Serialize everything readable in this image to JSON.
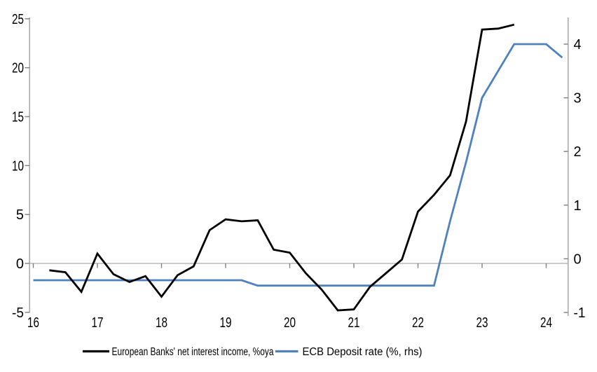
{
  "chart_data": {
    "type": "line",
    "title": "",
    "x_axis": {
      "ticks": [
        16,
        17,
        18,
        19,
        20,
        21,
        22,
        23,
        24
      ],
      "range": [
        16,
        24.35
      ],
      "tick_position": "on zero gridline"
    },
    "left_axis": {
      "ticks": [
        -5,
        0,
        5,
        10,
        15,
        20,
        25
      ],
      "range": [
        -5,
        25
      ]
    },
    "right_axis": {
      "ticks": [
        -1,
        0,
        1,
        2,
        3,
        4
      ],
      "range": [
        -1,
        4.47
      ]
    },
    "grid": "single horizontal line at left-axis zero",
    "legend_position": "bottom-center",
    "colors": {
      "axis_line": "#a6a6a6",
      "gridline": "#ababab",
      "tick_mark": "#7f7f7f",
      "series1": "#000000",
      "series2": "#4f81bd"
    },
    "series": [
      {
        "name": "European Banks' net interest income, %oya",
        "axis": "left",
        "color": "#000000",
        "x": [
          16.25,
          16.5,
          16.75,
          17,
          17.25,
          17.5,
          17.75,
          18,
          18.25,
          18.5,
          18.75,
          19,
          19.25,
          19.5,
          19.75,
          20,
          20.25,
          20.5,
          20.75,
          21,
          21.25,
          21.5,
          21.75,
          22,
          22.25,
          22.5,
          22.75,
          23,
          23.25,
          23.5
        ],
        "values": [
          -0.7,
          -0.9,
          -2.9,
          1.0,
          -1.1,
          -1.9,
          -1.3,
          -3.4,
          -1.2,
          -0.3,
          3.4,
          4.5,
          4.3,
          4.4,
          1.4,
          1.1,
          -1.0,
          -2.7,
          -4.8,
          -4.7,
          -2.4,
          -1.0,
          0.4,
          5.3,
          7.0,
          9.0,
          14.5,
          23.9,
          24.0,
          24.4
        ]
      },
      {
        "name": "ECB Deposit rate (%, rhs)",
        "axis": "right",
        "color": "#4f81bd",
        "x": [
          16,
          16.25,
          16.5,
          16.75,
          17,
          17.25,
          17.5,
          17.75,
          18,
          18.25,
          18.5,
          18.75,
          19,
          19.25,
          19.5,
          19.75,
          20,
          20.25,
          20.5,
          20.75,
          21,
          21.25,
          21.5,
          21.75,
          22,
          22.25,
          22.5,
          22.75,
          23,
          23.25,
          23.5,
          23.75,
          24,
          24.25
        ],
        "values": [
          -0.4,
          -0.4,
          -0.4,
          -0.4,
          -0.4,
          -0.4,
          -0.4,
          -0.4,
          -0.4,
          -0.4,
          -0.4,
          -0.4,
          -0.4,
          -0.4,
          -0.5,
          -0.5,
          -0.5,
          -0.5,
          -0.5,
          -0.5,
          -0.5,
          -0.5,
          -0.5,
          -0.5,
          -0.5,
          -0.5,
          0.7,
          1.8,
          3.0,
          3.5,
          4.0,
          4.0,
          4.0,
          3.75
        ]
      }
    ],
    "legend": [
      "European Banks' net interest income, %oya",
      "ECB Deposit rate (%, rhs)"
    ]
  }
}
